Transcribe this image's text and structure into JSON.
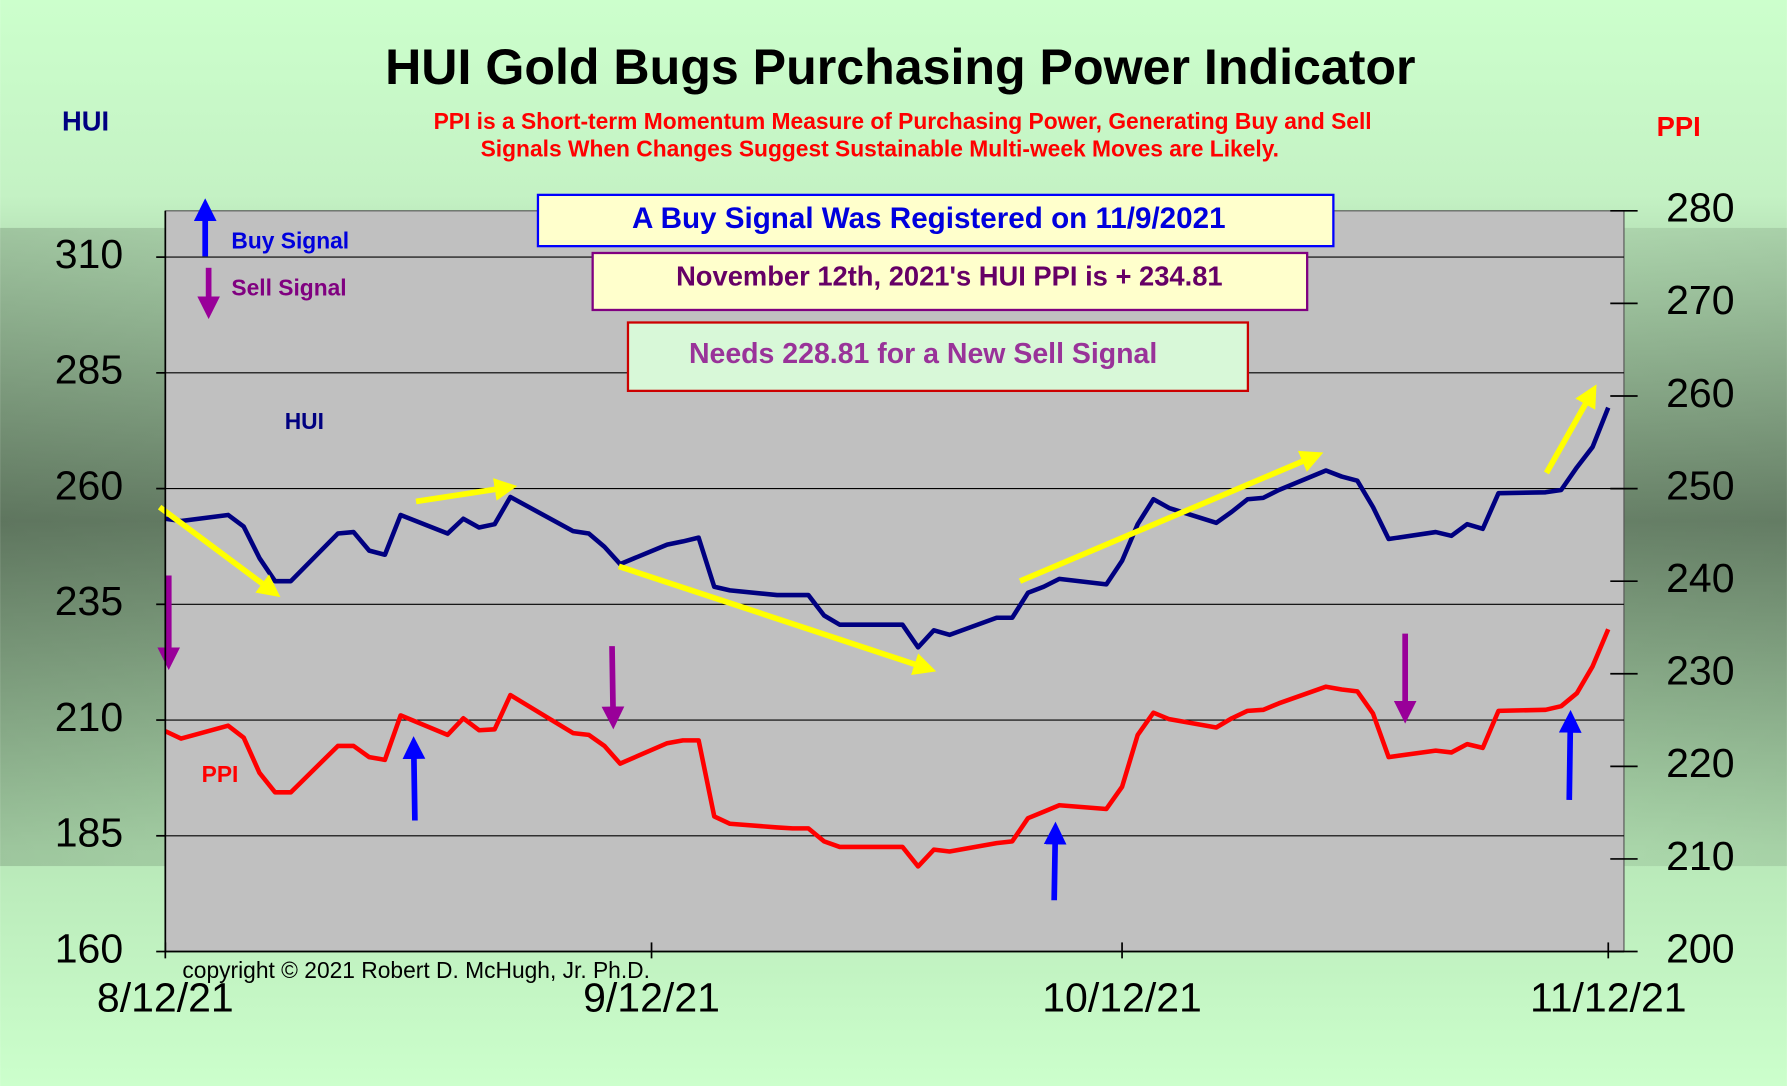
{
  "chart_data": {
    "type": "line",
    "title": "HUI Gold Bugs Purchasing Power Indicator",
    "subtitle": [
      "PPI is a Short-term Momentum Measure of Purchasing Power, Generating Buy and Sell",
      "Signals When Changes Suggest Sustainable Multi-week Moves are Likely."
    ],
    "y_label": "HUI",
    "y2_label": "PPI",
    "buy_signal_label": "Buy Signal",
    "sell_signal_label": "Sell Signal",
    "signal_box": "A Buy Signal Was Registered on 11/9/2021",
    "ppi_box": "November 12th, 2021's HUI PPI is + 234.81",
    "needs_box": "Needs 228.81 for a New Sell Signal",
    "copyright": "copyright © 2021 Robert D. McHugh, Jr. Ph.D.",
    "x": [
      "2021-08-12",
      "2021-08-13",
      "2021-08-16",
      "2021-08-17",
      "2021-08-18",
      "2021-08-19",
      "2021-08-20",
      "2021-08-23",
      "2021-08-24",
      "2021-08-25",
      "2021-08-26",
      "2021-08-27",
      "2021-08-30",
      "2021-08-31",
      "2021-09-01",
      "2021-09-02",
      "2021-09-03",
      "2021-09-07",
      "2021-09-08",
      "2021-09-09",
      "2021-09-10",
      "2021-09-13",
      "2021-09-14",
      "2021-09-15",
      "2021-09-16",
      "2021-09-17",
      "2021-09-20",
      "2021-09-21",
      "2021-09-22",
      "2021-09-23",
      "2021-09-24",
      "2021-09-27",
      "2021-09-28",
      "2021-09-29",
      "2021-09-30",
      "2021-10-01",
      "2021-10-04",
      "2021-10-05",
      "2021-10-06",
      "2021-10-07",
      "2021-10-08",
      "2021-10-11",
      "2021-10-12",
      "2021-10-13",
      "2021-10-14",
      "2021-10-15",
      "2021-10-18",
      "2021-10-19",
      "2021-10-20",
      "2021-10-21",
      "2021-10-22",
      "2021-10-25",
      "2021-10-26",
      "2021-10-27",
      "2021-10-28",
      "2021-10-29",
      "2021-11-01",
      "2021-11-02",
      "2021-11-03",
      "2021-11-04",
      "2021-11-05",
      "2021-11-08",
      "2021-11-09",
      "2021-11-10",
      "2021-11-11",
      "2021-11-12"
    ],
    "xlim": [
      "2021-08-12",
      "2021-11-13"
    ],
    "xticks": [
      {
        "value": "2021-08-12",
        "label": "8/12/21"
      },
      {
        "value": "2021-09-12",
        "label": "9/12/21"
      },
      {
        "value": "2021-10-12",
        "label": "10/12/21"
      },
      {
        "value": "2021-11-12",
        "label": "11/12/21"
      }
    ],
    "ylim": [
      160,
      320
    ],
    "yticks": [
      160,
      185,
      210,
      235,
      260,
      285,
      310
    ],
    "y2lim": [
      200,
      280
    ],
    "y2ticks": [
      200,
      210,
      220,
      230,
      240,
      250,
      260,
      270,
      280
    ],
    "grid": true,
    "series": [
      {
        "name": "HUI",
        "color": "#000080",
        "values": [
          253.5,
          253,
          254.3,
          251.8,
          245,
          240,
          240,
          250.3,
          250.6,
          246.6,
          245.7,
          254.3,
          250.3,
          253.5,
          251.6,
          252.3,
          258.2,
          250.8,
          250.3,
          247.4,
          243.7,
          247.9,
          248.6,
          249.4,
          238.8,
          238,
          237,
          237,
          237,
          232.6,
          230.6,
          230.6,
          230.6,
          225.7,
          229.4,
          228.4,
          232.1,
          232.1,
          237.5,
          238.8,
          240.5,
          239.3,
          244.4,
          252.3,
          257.7,
          255.8,
          252.6,
          255,
          257.7,
          258,
          259.7,
          263.9,
          262.6,
          261.7,
          256,
          249.1,
          250.6,
          249.8,
          252.3,
          251.3,
          259,
          259.2,
          259.7,
          264.6,
          269,
          277.5
        ]
      },
      {
        "name": "PPI",
        "color": "#ff0000",
        "axis": "y2",
        "values": [
          223.8,
          223,
          224.4,
          223.1,
          219.3,
          217.2,
          217.2,
          222.2,
          222.2,
          221,
          220.7,
          225.5,
          223.4,
          225.2,
          223.9,
          224,
          227.7,
          223.6,
          223.4,
          222.2,
          220.3,
          222.5,
          222.8,
          222.8,
          214.6,
          213.8,
          213.4,
          213.3,
          213.3,
          211.9,
          211.3,
          211.3,
          211.3,
          209.2,
          211,
          210.8,
          211.7,
          211.9,
          214.4,
          215.1,
          215.8,
          215.4,
          217.8,
          223.4,
          225.8,
          225.1,
          224.2,
          225.2,
          226,
          226.1,
          226.8,
          228.6,
          228.3,
          228.1,
          225.7,
          221,
          221.7,
          221.5,
          222.4,
          222,
          226,
          226.1,
          226.5,
          227.9,
          230.8,
          234.8
        ]
      }
    ]
  }
}
